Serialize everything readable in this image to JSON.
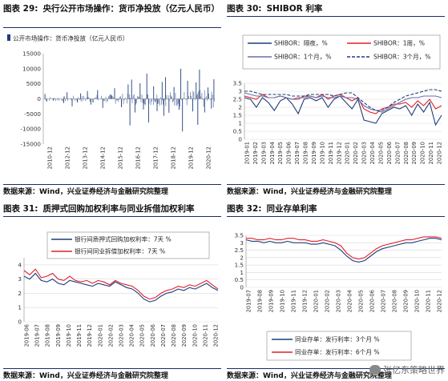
{
  "panels": [
    {
      "number": "图表 29:",
      "title": "央行公开市场操作：货币净投放（亿元人民币）",
      "source": "数据来源：Wind，兴业证券经济与金融研究院整理",
      "chart_data": {
        "type": "bar",
        "series": [
          {
            "name": "公开市场操作：货币净投放（亿元人民币）",
            "color": "#1f3d7a"
          }
        ],
        "y_ticks": [
          15000,
          10000,
          5000,
          0,
          -5000,
          -10000,
          -15000
        ],
        "ylim": [
          -15000,
          15000
        ],
        "x_ticks": [
          "2010-12",
          "2012-12",
          "2013-12",
          "2014-12",
          "2015-12",
          "2016-12",
          "2017-12",
          "2018-12",
          "2019-12",
          "2020-12"
        ],
        "xlim": [
          2010.9,
          2021.0
        ],
        "spikes": [
          [
            2011.0,
            1600
          ],
          [
            2011.1,
            -900
          ],
          [
            2011.5,
            -600
          ],
          [
            2012.1,
            -1400
          ],
          [
            2012.3,
            2200
          ],
          [
            2012.6,
            -2500
          ],
          [
            2012.9,
            -1200
          ],
          [
            2013.1,
            1800
          ],
          [
            2013.5,
            2600
          ],
          [
            2013.7,
            -1900
          ],
          [
            2014.1,
            2900
          ],
          [
            2014.4,
            -3000
          ],
          [
            2014.9,
            1100
          ],
          [
            2015.1,
            3500
          ],
          [
            2015.5,
            -2800
          ],
          [
            2015.9,
            4800
          ],
          [
            2016.0,
            -8800
          ],
          [
            2016.1,
            6400
          ],
          [
            2016.3,
            -4500
          ],
          [
            2016.6,
            5200
          ],
          [
            2016.8,
            -3500
          ],
          [
            2017.0,
            8400
          ],
          [
            2017.1,
            -7800
          ],
          [
            2017.4,
            4200
          ],
          [
            2017.6,
            -4100
          ],
          [
            2017.9,
            5600
          ],
          [
            2018.0,
            -5600
          ],
          [
            2018.1,
            7200
          ],
          [
            2018.3,
            -4600
          ],
          [
            2018.6,
            3900
          ],
          [
            2018.9,
            -3600
          ],
          [
            2019.0,
            10000
          ],
          [
            2019.1,
            -10800
          ],
          [
            2019.4,
            6000
          ],
          [
            2019.7,
            -4200
          ],
          [
            2019.9,
            5500
          ],
          [
            2020.0,
            -8600
          ],
          [
            2020.1,
            9700
          ],
          [
            2020.4,
            -4500
          ],
          [
            2020.6,
            3800
          ],
          [
            2020.8,
            -3200
          ],
          [
            2020.95,
            6500
          ]
        ]
      }
    },
    {
      "number": "图表 30:",
      "title": "SHIBOR 利率",
      "source": "数据来源：Wind，兴业证券经济与金融研究院整理",
      "chart_data": {
        "type": "line",
        "series": [
          {
            "name": "SHIBOR：隔夜，%",
            "color": "#1f3d7a",
            "style": "solid",
            "values": [
              2.6,
              2.5,
              2.0,
              2.6,
              2.3,
              1.8,
              2.4,
              2.6,
              2.2,
              1.6,
              2.5,
              2.6,
              2.4,
              2.6,
              2.0,
              2.5,
              2.7,
              2.3,
              1.9,
              2.5,
              1.2,
              1.1,
              1.0,
              1.6,
              1.8,
              2.0,
              1.9,
              2.1,
              1.5,
              2.2,
              1.7,
              2.3,
              0.9,
              1.5
            ]
          },
          {
            "name": "SHIBOR：1周，%",
            "color": "#e0202a",
            "style": "solid",
            "values": [
              2.7,
              2.6,
              2.5,
              2.8,
              2.6,
              2.6,
              2.7,
              2.6,
              2.5,
              2.5,
              2.7,
              2.7,
              2.6,
              2.8,
              2.5,
              2.7,
              2.8,
              2.6,
              2.4,
              2.6,
              1.9,
              1.7,
              1.6,
              1.9,
              2.0,
              2.2,
              2.2,
              2.3,
              2.0,
              2.4,
              2.1,
              2.5,
              1.9,
              2.1
            ]
          },
          {
            "name": "SHIBOR：1个月，%",
            "color": "#6a6ea8",
            "style": "solid",
            "values": [
              2.9,
              2.8,
              2.7,
              2.7,
              2.6,
              2.6,
              2.7,
              2.6,
              2.5,
              2.6,
              2.6,
              2.7,
              2.6,
              2.7,
              2.6,
              2.6,
              2.7,
              2.6,
              2.6,
              2.5,
              2.1,
              1.9,
              1.8,
              1.7,
              1.9,
              2.1,
              2.3,
              2.5,
              2.6,
              2.6,
              2.7,
              2.7,
              2.7,
              2.6
            ]
          },
          {
            "name": "SHIBOR：3个月，%",
            "color": "#1f3d7a",
            "style": "dashed",
            "values": [
              3.0,
              3.0,
              2.9,
              2.8,
              2.8,
              2.8,
              2.8,
              2.8,
              2.7,
              2.7,
              2.7,
              2.8,
              2.8,
              2.8,
              2.8,
              2.7,
              2.8,
              2.9,
              2.9,
              2.6,
              2.3,
              2.0,
              1.8,
              1.8,
              2.0,
              2.3,
              2.5,
              2.7,
              2.8,
              2.9,
              3.0,
              3.1,
              3.1,
              3.0
            ]
          }
        ],
        "y_ticks": [
          3.5,
          3.0,
          2.5,
          2.0,
          1.5,
          1.0,
          0.5,
          0.0
        ],
        "ylim": [
          0,
          3.5
        ],
        "x_ticks": [
          "2019-01",
          "2019-02",
          "2019-03",
          "2019-04",
          "2019-05",
          "2019-06",
          "2019-07",
          "2019-08",
          "2019-09",
          "2019-10",
          "2019-11",
          "2019-12",
          "2020-01",
          "2020-02",
          "2020-03",
          "2020-04",
          "2020-05",
          "2020-06",
          "2020-07",
          "2020-08",
          "2020-09",
          "2020-10",
          "2020-11",
          "2020-12"
        ]
      }
    },
    {
      "number": "图表 31:",
      "title": "质押式回购加权利率与同业拆借加权利率",
      "source": "数据来源：Wind，兴业证券经济与金融研究院整理",
      "chart_data": {
        "type": "line",
        "series": [
          {
            "name": "银行间质押式回购加权利率：7天 %",
            "color": "#1f3d7a",
            "style": "solid",
            "values": [
              3.2,
              3.0,
              3.4,
              2.9,
              2.8,
              3.0,
              2.7,
              2.6,
              2.9,
              2.8,
              2.7,
              2.6,
              2.5,
              2.7,
              2.6,
              2.5,
              2.8,
              2.6,
              2.4,
              2.3,
              2.0,
              1.6,
              1.4,
              1.5,
              1.8,
              2.0,
              2.1,
              2.3,
              2.2,
              2.4,
              2.3,
              2.5,
              2.7,
              2.4,
              2.2
            ]
          },
          {
            "name": "银行间同业拆借加权利率：7天 %",
            "color": "#e0202a",
            "style": "solid",
            "values": [
              3.6,
              3.3,
              3.7,
              3.1,
              3.2,
              3.4,
              3.0,
              2.9,
              3.2,
              2.9,
              2.8,
              2.9,
              2.7,
              2.9,
              2.8,
              2.6,
              2.9,
              2.7,
              2.6,
              2.5,
              2.2,
              1.8,
              1.6,
              1.7,
              2.0,
              2.2,
              2.3,
              2.5,
              2.4,
              2.6,
              2.5,
              2.7,
              2.9,
              2.6,
              2.3
            ]
          }
        ],
        "y_ticks": [
          4.0,
          3.0,
          2.0,
          1.0,
          0.0
        ],
        "ylim": [
          0,
          4.5
        ],
        "x_ticks": [
          "2019-06",
          "2019-07",
          "2019-08",
          "2019-09",
          "2019-10",
          "2019-11",
          "2019-12",
          "2020-01",
          "2020-02",
          "2020-03",
          "2020-04",
          "2020-05",
          "2020-06",
          "2020-07",
          "2020-08",
          "2020-09",
          "2020-10",
          "2020-11",
          "2020-12"
        ]
      }
    },
    {
      "number": "图表 32:",
      "title": "同业存单利率",
      "source": "数据来源：Wind，兴业证券经济与金融研究院整理",
      "chart_data": {
        "type": "line",
        "series": [
          {
            "name": "同业存单：发行利率：3个月 %",
            "color": "#1f3d7a",
            "style": "solid",
            "values": [
              3.2,
              3.1,
              3.1,
              3.0,
              3.1,
              3.0,
              3.0,
              3.1,
              3.0,
              3.0,
              3.0,
              2.9,
              2.9,
              3.0,
              2.9,
              2.8,
              2.5,
              2.1,
              1.8,
              1.7,
              1.8,
              2.1,
              2.4,
              2.6,
              2.7,
              2.8,
              2.9,
              3.0,
              3.0,
              3.1,
              3.2,
              3.3,
              3.3,
              3.2
            ]
          },
          {
            "name": "同业存单：发行利率：6个月 %",
            "color": "#e0202a",
            "style": "solid",
            "values": [
              3.3,
              3.3,
              3.2,
              3.2,
              3.3,
              3.2,
              3.2,
              3.3,
              3.3,
              3.2,
              3.2,
              3.1,
              3.1,
              3.2,
              3.1,
              3.0,
              2.8,
              2.3,
              2.0,
              1.9,
              2.0,
              2.3,
              2.6,
              2.8,
              2.9,
              3.0,
              3.1,
              3.2,
              3.2,
              3.3,
              3.4,
              3.4,
              3.4,
              3.3
            ]
          }
        ],
        "y_ticks": [
          3.5,
          3.0,
          2.5,
          2.0,
          1.5,
          1.0,
          0.5,
          0.0
        ],
        "ylim": [
          0,
          3.5
        ],
        "x_ticks": [
          "2019-07",
          "2019-08",
          "2019-09",
          "2019-10",
          "2019-11",
          "2019-12",
          "2020-01",
          "2020-02",
          "2020-03",
          "2020-04",
          "2020-05",
          "2020-06",
          "2020-07",
          "2020-08",
          "2020-09",
          "2020-10",
          "2020-11",
          "2020-12"
        ]
      }
    }
  ],
  "watermark": "张亿东策略世界"
}
